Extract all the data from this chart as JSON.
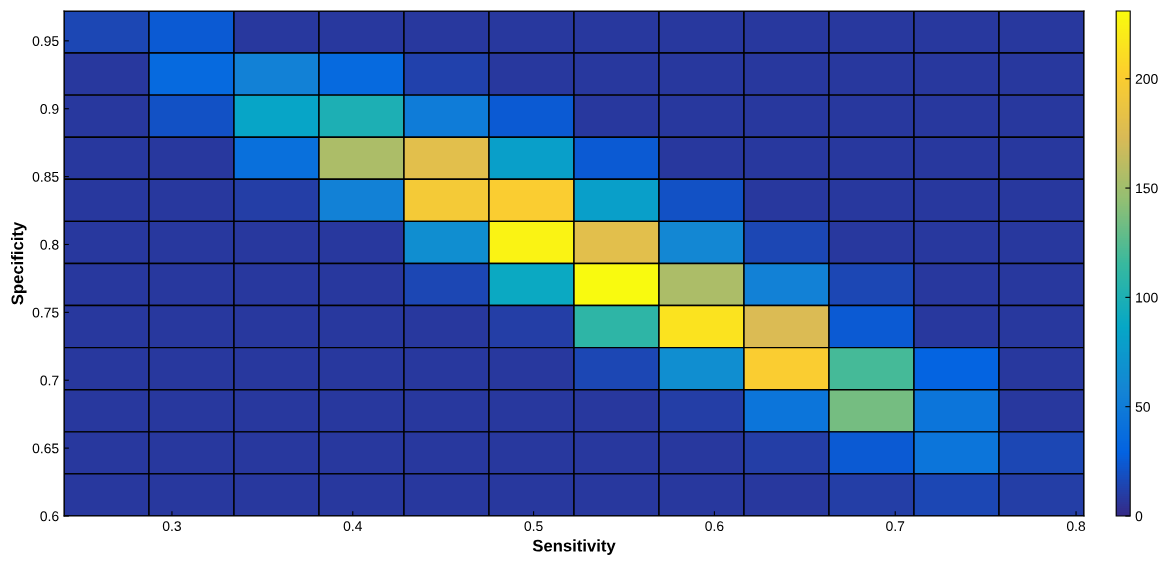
{
  "chart_data": {
    "type": "heatmap",
    "xlabel": "Sensitivity",
    "ylabel": "Specificity",
    "xlim": [
      0.2403,
      0.8044
    ],
    "ylim": [
      0.6,
      0.972
    ],
    "xticks": [
      0.3,
      0.4,
      0.5,
      0.6,
      0.7,
      0.8
    ],
    "yticks": [
      0.6,
      0.65,
      0.7,
      0.75,
      0.8,
      0.85,
      0.9,
      0.95
    ],
    "clim": [
      0,
      231
    ],
    "cticks": [
      0,
      50,
      100,
      150,
      200
    ],
    "cells": [
      [
        15,
        25,
        8,
        8,
        8,
        8,
        8,
        8,
        8,
        8,
        8,
        8
      ],
      [
        8,
        35,
        55,
        35,
        12,
        8,
        8,
        8,
        8,
        8,
        8,
        8
      ],
      [
        8,
        20,
        85,
        100,
        50,
        25,
        8,
        8,
        8,
        8,
        8,
        8
      ],
      [
        8,
        8,
        40,
        155,
        180,
        80,
        25,
        8,
        8,
        8,
        8,
        8
      ],
      [
        8,
        8,
        10,
        55,
        195,
        200,
        80,
        20,
        8,
        8,
        8,
        8
      ],
      [
        8,
        8,
        8,
        8,
        65,
        225,
        180,
        60,
        15,
        8,
        8,
        8
      ],
      [
        8,
        8,
        8,
        8,
        15,
        90,
        230,
        155,
        55,
        15,
        8,
        8
      ],
      [
        8,
        8,
        8,
        8,
        8,
        10,
        110,
        215,
        175,
        25,
        8,
        8
      ],
      [
        8,
        8,
        8,
        8,
        8,
        8,
        15,
        65,
        200,
        120,
        30,
        8
      ],
      [
        8,
        8,
        8,
        8,
        8,
        8,
        8,
        10,
        45,
        135,
        45,
        8
      ],
      [
        8,
        8,
        8,
        8,
        8,
        8,
        8,
        8,
        10,
        25,
        45,
        15
      ],
      [
        8,
        8,
        8,
        8,
        8,
        8,
        8,
        8,
        8,
        10,
        15,
        10
      ]
    ]
  }
}
